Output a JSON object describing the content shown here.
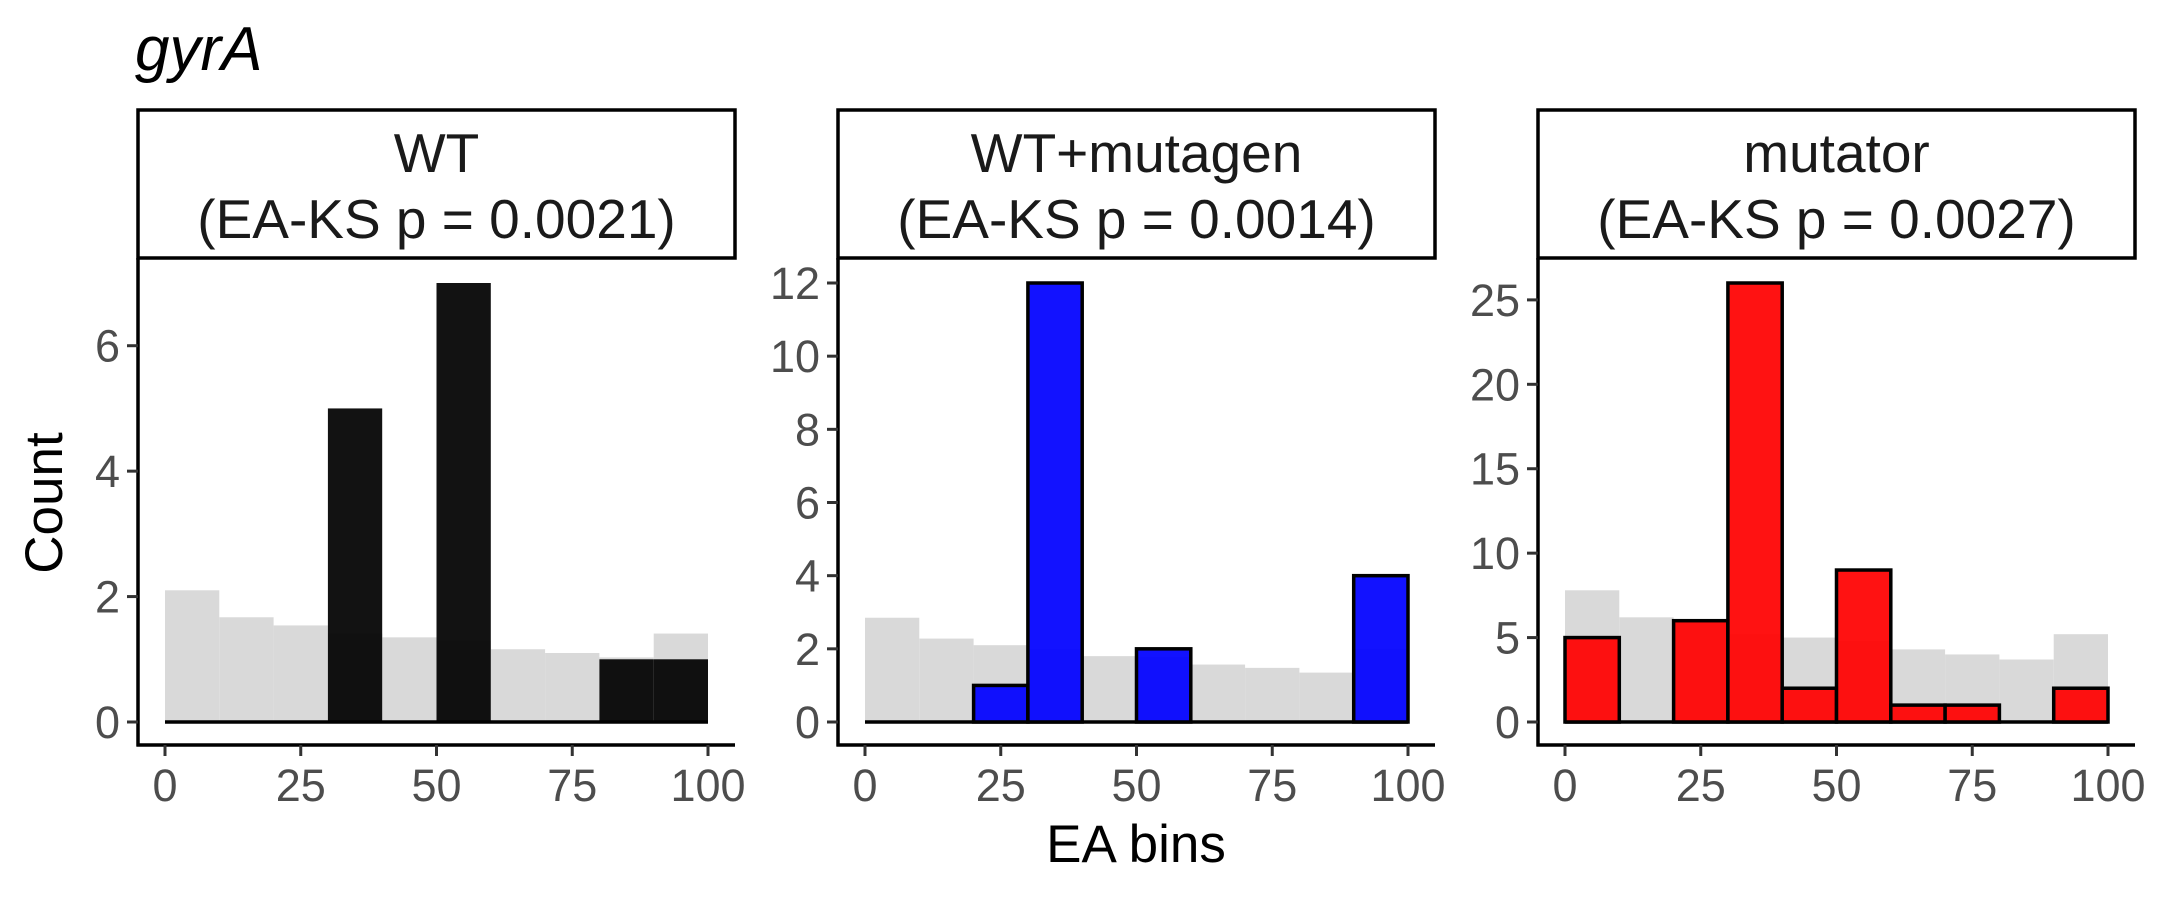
{
  "chart_data": {
    "type": "bar",
    "title": "gyrA",
    "xlabel": "EA bins",
    "ylabel": "Count",
    "x_bin_starts": [
      0,
      10,
      20,
      30,
      40,
      50,
      60,
      70,
      80,
      90
    ],
    "x_bin_width": 10,
    "xlim": [
      0,
      100
    ],
    "x_ticks": [
      0,
      25,
      50,
      75,
      100
    ],
    "grid": false,
    "background_color": "#d9d9d9",
    "panels": [
      {
        "strip_line1": "WT",
        "strip_line2": "(EA-KS p = 0.0021)",
        "color": "#000000",
        "outline": false,
        "opacity": 0.93,
        "ylim": [
          0,
          7
        ],
        "y_ticks": [
          0,
          2,
          4,
          6
        ],
        "values": [
          0,
          0,
          0,
          5,
          0,
          7,
          0,
          0,
          1,
          1
        ],
        "background_values": [
          2.1,
          1.67,
          1.54,
          1.41,
          1.35,
          1.3,
          1.16,
          1.1,
          1.03,
          1.41
        ]
      },
      {
        "strip_line1": "WT+mutagen",
        "strip_line2": "(EA-KS p = 0.0014)",
        "color": "#0000ff",
        "outline": true,
        "opacity": 0.93,
        "ylim": [
          0,
          12
        ],
        "y_ticks": [
          0,
          2,
          4,
          6,
          8,
          10,
          12
        ],
        "values": [
          0,
          0,
          1,
          12,
          0,
          2,
          0,
          0,
          0,
          4
        ],
        "background_values": [
          2.85,
          2.28,
          2.1,
          1.99,
          1.8,
          1.78,
          1.57,
          1.48,
          1.35,
          2.0
        ]
      },
      {
        "strip_line1": "mutator",
        "strip_line2": "(EA-KS p = 0.0027)",
        "color": "#ff0000",
        "outline": true,
        "opacity": 0.93,
        "ylim": [
          0,
          26
        ],
        "y_ticks": [
          0,
          5,
          10,
          15,
          20,
          25
        ],
        "values": [
          5,
          0,
          6,
          26,
          2,
          9,
          1,
          1,
          0,
          2
        ],
        "background_values": [
          7.8,
          6.2,
          6.0,
          5.2,
          5.0,
          4.8,
          4.3,
          4.0,
          3.7,
          5.2
        ]
      }
    ]
  }
}
